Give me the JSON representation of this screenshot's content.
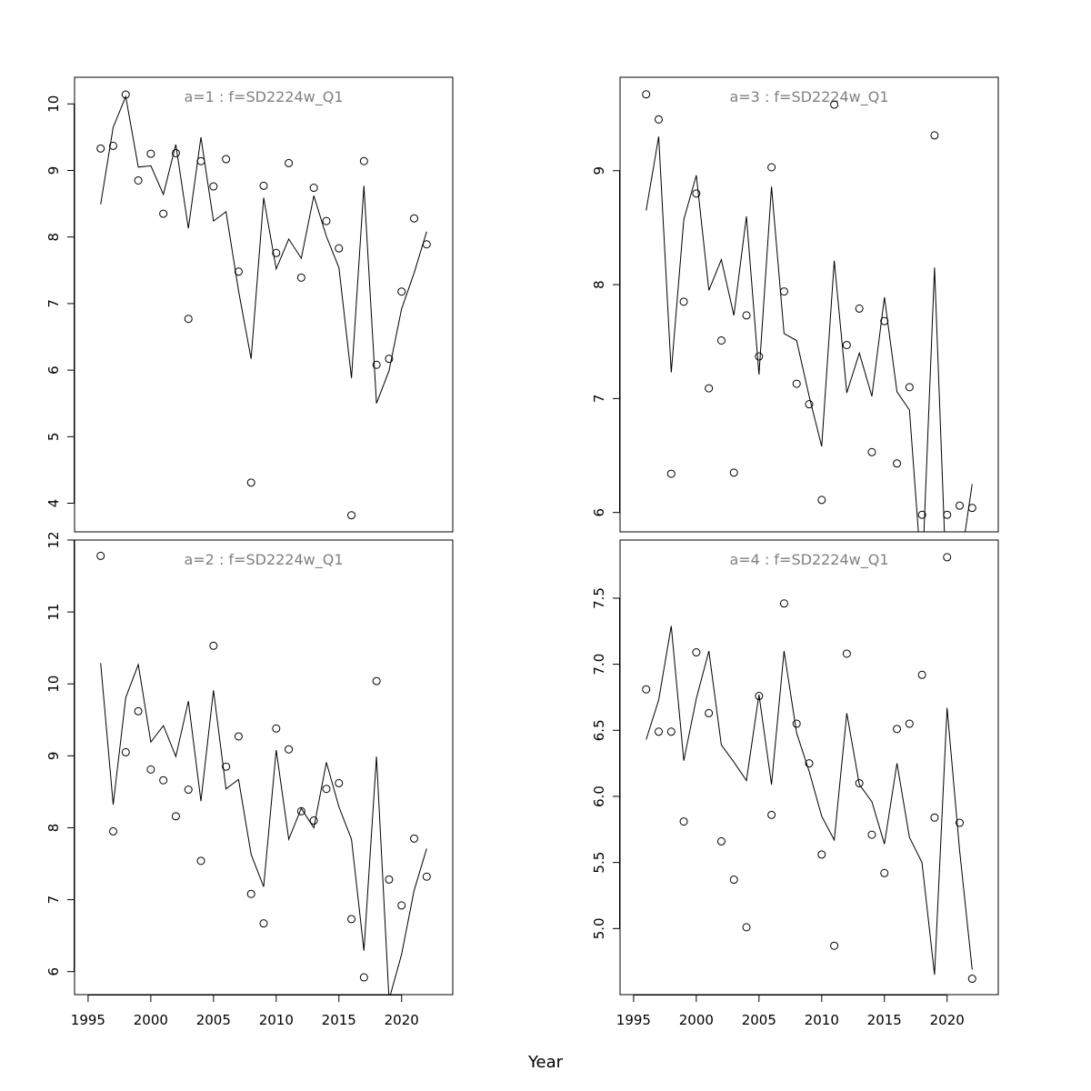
{
  "xlabel": "Year",
  "chart_data": [
    {
      "type": "scatter+line",
      "title": "a=1  :  f=SD2224w_Q1",
      "xlim": [
        1993.92,
        2024.08
      ],
      "ylim": [
        3.57,
        10.4
      ],
      "xticks": [],
      "yticks": [
        4,
        5,
        6,
        7,
        8,
        9,
        10
      ],
      "x": [
        1996,
        1997,
        1998,
        1999,
        2000,
        2001,
        2002,
        2003,
        2004,
        2005,
        2006,
        2007,
        2008,
        2009,
        2010,
        2011,
        2012,
        2013,
        2014,
        2015,
        2016,
        2017,
        2018,
        2019,
        2020,
        2021,
        2022
      ],
      "points": [
        9.33,
        9.37,
        10.14,
        8.85,
        9.25,
        8.35,
        9.26,
        6.77,
        9.14,
        8.76,
        9.17,
        7.48,
        4.31,
        8.77,
        7.76,
        9.11,
        7.39,
        8.74,
        8.24,
        7.83,
        3.82,
        9.14,
        6.08,
        6.17,
        7.18,
        8.28,
        7.89
      ],
      "line": [
        8.49,
        9.65,
        10.11,
        9.05,
        9.07,
        8.64,
        9.39,
        8.13,
        9.5,
        8.24,
        8.38,
        7.19,
        6.17,
        8.59,
        7.52,
        7.97,
        7.68,
        8.62,
        8.01,
        7.54,
        5.88,
        8.77,
        5.5,
        5.99,
        6.92,
        7.46,
        8.08
      ]
    },
    {
      "type": "scatter+line",
      "title": "a=2  :  f=SD2224w_Q1",
      "xlim": [
        1993.92,
        2024.08
      ],
      "ylim": [
        5.68,
        12.0
      ],
      "xticks": [
        1995,
        2000,
        2005,
        2010,
        2015,
        2020
      ],
      "yticks": [
        6,
        7,
        8,
        9,
        10,
        11,
        12
      ],
      "x": [
        1996,
        1997,
        1998,
        1999,
        2000,
        2001,
        2002,
        2003,
        2004,
        2005,
        2006,
        2007,
        2008,
        2009,
        2010,
        2011,
        2012,
        2013,
        2014,
        2015,
        2016,
        2017,
        2018,
        2019,
        2020,
        2021,
        2022
      ],
      "points": [
        11.78,
        7.95,
        9.05,
        9.62,
        8.81,
        8.66,
        8.16,
        8.53,
        7.54,
        10.53,
        8.85,
        9.27,
        7.08,
        6.67,
        9.38,
        9.09,
        8.23,
        8.1,
        8.54,
        8.62,
        6.73,
        5.92,
        10.04,
        7.28,
        6.92,
        7.85,
        7.32
      ],
      "line": [
        10.29,
        8.32,
        9.81,
        10.27,
        9.19,
        9.42,
        8.99,
        9.76,
        8.37,
        9.91,
        8.54,
        8.67,
        7.63,
        7.18,
        9.08,
        7.84,
        8.27,
        8.0,
        8.91,
        8.29,
        7.84,
        6.29,
        8.99,
        5.61,
        6.24,
        7.13,
        7.71
      ]
    },
    {
      "type": "scatter+line",
      "title": "a=3  :  f=SD2224w_Q1",
      "xlim": [
        1993.92,
        2024.08
      ],
      "ylim": [
        5.83,
        9.82
      ],
      "xticks": [],
      "yticks": [
        6,
        7,
        8,
        9
      ],
      "x": [
        1996,
        1997,
        1998,
        1999,
        2000,
        2001,
        2002,
        2003,
        2004,
        2005,
        2006,
        2007,
        2008,
        2009,
        2010,
        2011,
        2012,
        2013,
        2014,
        2015,
        2016,
        2017,
        2018,
        2019,
        2020,
        2021,
        2022
      ],
      "points": [
        9.67,
        9.45,
        6.34,
        7.85,
        8.8,
        7.09,
        7.51,
        6.35,
        7.73,
        7.37,
        9.03,
        7.94,
        7.13,
        6.95,
        6.11,
        9.58,
        7.47,
        7.79,
        6.53,
        7.68,
        6.43,
        7.1,
        5.98,
        9.31,
        5.98,
        6.06,
        6.04
      ],
      "line": [
        8.65,
        9.3,
        7.23,
        8.57,
        8.96,
        7.95,
        8.22,
        7.73,
        8.6,
        7.21,
        8.86,
        7.57,
        7.51,
        7.02,
        6.58,
        8.21,
        7.05,
        7.4,
        7.02,
        7.89,
        7.06,
        6.9,
        5.4,
        8.15,
        5.2,
        5.5,
        6.25
      ]
    },
    {
      "type": "scatter+line",
      "title": "a=4  :  f=SD2224w_Q1",
      "xlim": [
        1993.92,
        2024.08
      ],
      "ylim": [
        4.5,
        7.94
      ],
      "xticks": [
        1995,
        2000,
        2005,
        2010,
        2015,
        2020
      ],
      "yticks": [
        "5.0",
        "5.5",
        "6.0",
        "6.5",
        "7.0",
        "7.5"
      ],
      "x": [
        1996,
        1997,
        1998,
        1999,
        2000,
        2001,
        2002,
        2003,
        2004,
        2005,
        2006,
        2007,
        2008,
        2009,
        2010,
        2011,
        2012,
        2013,
        2014,
        2015,
        2016,
        2017,
        2018,
        2019,
        2020,
        2021,
        2022
      ],
      "points": [
        6.81,
        6.49,
        6.49,
        5.81,
        7.09,
        6.63,
        5.66,
        5.37,
        5.01,
        6.76,
        5.86,
        7.46,
        6.55,
        6.25,
        5.56,
        4.87,
        7.08,
        6.1,
        5.71,
        5.42,
        6.51,
        6.55,
        6.92,
        5.84,
        7.81,
        5.8,
        4.62
      ],
      "line": [
        6.43,
        6.73,
        7.29,
        6.27,
        6.74,
        7.1,
        6.39,
        6.26,
        6.12,
        6.77,
        6.09,
        7.1,
        6.48,
        6.19,
        5.85,
        5.67,
        6.63,
        6.09,
        5.96,
        5.64,
        6.25,
        5.69,
        5.5,
        4.65,
        6.67,
        5.59,
        4.69
      ]
    }
  ],
  "colors": {
    "title": "#808080",
    "marks": "#000000",
    "background": "#ffffff"
  }
}
